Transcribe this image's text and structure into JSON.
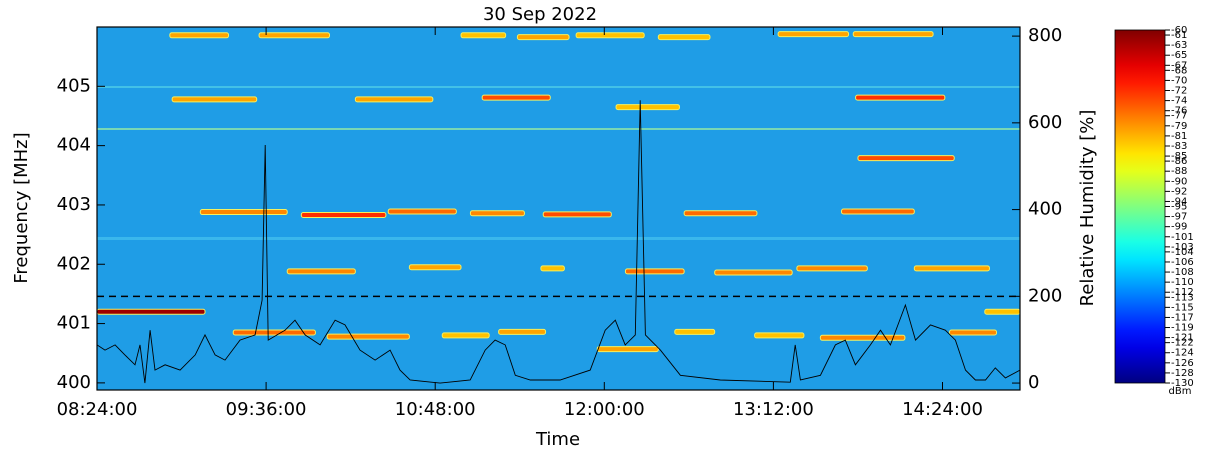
{
  "chart_data": {
    "type": "spectrogram",
    "title": "30 Sep 2022",
    "x_label": "Time",
    "y_label": "Frequency [MHz]",
    "y2_label": "Relative Humidity [%]",
    "colorbar_unit": "dBm",
    "colormap": "jet",
    "xlim": [
      504,
      897
    ],
    "xticks": [
      {
        "value": 504,
        "label": "08:24:00"
      },
      {
        "value": 576,
        "label": "09:36:00"
      },
      {
        "value": 648,
        "label": "10:48:00"
      },
      {
        "value": 720,
        "label": "12:00:00"
      },
      {
        "value": 792,
        "label": "13:12:00"
      },
      {
        "value": 864,
        "label": "14:24:00"
      }
    ],
    "ylim": [
      399.88,
      406.0
    ],
    "yticks": [
      400,
      401,
      402,
      403,
      404,
      405
    ],
    "y2lim": [
      -16,
      821
    ],
    "y2ticks": [
      0,
      200,
      400,
      600,
      800
    ],
    "clim": [
      -130,
      -60
    ],
    "cticks": [
      -60,
      -61,
      -63,
      -65,
      -67,
      -68,
      -70,
      -72,
      -74,
      -76,
      -77,
      -79,
      -81,
      -83,
      -85,
      -86,
      -88,
      -90,
      -92,
      -94,
      -95,
      -97,
      -99,
      -101,
      -103,
      -104,
      -106,
      -108,
      -110,
      -112,
      -113,
      -115,
      -117,
      -119,
      -121,
      -122,
      -124,
      -126,
      -128,
      -130
    ],
    "reference_line_y2": 200,
    "signals": [
      {
        "start": 535,
        "end": 560,
        "frequency": 405.86,
        "level": -80
      },
      {
        "start": 573,
        "end": 603,
        "frequency": 405.86,
        "level": -80
      },
      {
        "start": 659,
        "end": 678,
        "frequency": 405.86,
        "level": -82
      },
      {
        "start": 683,
        "end": 705,
        "frequency": 405.83,
        "level": -80
      },
      {
        "start": 708,
        "end": 737,
        "frequency": 405.86,
        "level": -82
      },
      {
        "start": 743,
        "end": 765,
        "frequency": 405.83,
        "level": -82
      },
      {
        "start": 794,
        "end": 824,
        "frequency": 405.88,
        "level": -80
      },
      {
        "start": 826,
        "end": 860,
        "frequency": 405.88,
        "level": -80
      },
      {
        "start": 536,
        "end": 572,
        "frequency": 404.78,
        "level": -80
      },
      {
        "start": 614,
        "end": 647,
        "frequency": 404.78,
        "level": -80
      },
      {
        "start": 668,
        "end": 697,
        "frequency": 404.81,
        "level": -74
      },
      {
        "start": 725,
        "end": 752,
        "frequency": 404.65,
        "level": -82
      },
      {
        "start": 827,
        "end": 865,
        "frequency": 404.81,
        "level": -72
      },
      {
        "start": 828,
        "end": 869,
        "frequency": 403.79,
        "level": -74
      },
      {
        "start": 548,
        "end": 585,
        "frequency": 402.88,
        "level": -78
      },
      {
        "start": 591,
        "end": 627,
        "frequency": 402.83,
        "level": -72
      },
      {
        "start": 628,
        "end": 657,
        "frequency": 402.89,
        "level": -76
      },
      {
        "start": 663,
        "end": 686,
        "frequency": 402.86,
        "level": -78
      },
      {
        "start": 694,
        "end": 723,
        "frequency": 402.84,
        "level": -74
      },
      {
        "start": 754,
        "end": 785,
        "frequency": 402.86,
        "level": -76
      },
      {
        "start": 821,
        "end": 852,
        "frequency": 402.89,
        "level": -76
      },
      {
        "start": 585,
        "end": 614,
        "frequency": 401.88,
        "level": -78
      },
      {
        "start": 637,
        "end": 659,
        "frequency": 401.95,
        "level": -80
      },
      {
        "start": 693,
        "end": 703,
        "frequency": 401.93,
        "level": -82
      },
      {
        "start": 729,
        "end": 754,
        "frequency": 401.88,
        "level": -76
      },
      {
        "start": 767,
        "end": 800,
        "frequency": 401.86,
        "level": -78
      },
      {
        "start": 802,
        "end": 832,
        "frequency": 401.93,
        "level": -78
      },
      {
        "start": 852,
        "end": 884,
        "frequency": 401.93,
        "level": -80
      },
      {
        "start": 504,
        "end": 550,
        "frequency": 401.2,
        "level": -62
      },
      {
        "start": 882,
        "end": 897,
        "frequency": 401.2,
        "level": -82
      },
      {
        "start": 562,
        "end": 597,
        "frequency": 400.85,
        "level": -76
      },
      {
        "start": 602,
        "end": 637,
        "frequency": 400.78,
        "level": -78
      },
      {
        "start": 651,
        "end": 671,
        "frequency": 400.8,
        "level": -82
      },
      {
        "start": 675,
        "end": 695,
        "frequency": 400.86,
        "level": -80
      },
      {
        "start": 717,
        "end": 743,
        "frequency": 400.57,
        "level": -80
      },
      {
        "start": 750,
        "end": 767,
        "frequency": 400.86,
        "level": -82
      },
      {
        "start": 784,
        "end": 805,
        "frequency": 400.8,
        "level": -82
      },
      {
        "start": 812,
        "end": 848,
        "frequency": 400.76,
        "level": -78
      },
      {
        "start": 867,
        "end": 887,
        "frequency": 400.85,
        "level": -78
      }
    ],
    "humidity": {
      "color": "#000000",
      "axis": "y2",
      "x": [
        504.0,
        507.4,
        511.7,
        515.9,
        520.2,
        522.3,
        524.4,
        526.6,
        528.7,
        533.0,
        539.4,
        545.8,
        550.0,
        554.3,
        558.5,
        564.9,
        571.3,
        574.3,
        575.6,
        576.9,
        584.1,
        588.3,
        592.6,
        599.0,
        605.4,
        609.6,
        616.0,
        622.4,
        628.8,
        633.0,
        637.3,
        650.1,
        662.9,
        669.3,
        673.5,
        677.8,
        682.1,
        688.5,
        701.2,
        714.0,
        720.4,
        724.7,
        728.9,
        733.2,
        735.3,
        737.5,
        743.9,
        752.4,
        769.4,
        799.2,
        801.3,
        803.5,
        812.0,
        818.4,
        822.6,
        826.9,
        833.3,
        837.6,
        841.8,
        848.2,
        852.5,
        858.9,
        865.2,
        869.5,
        873.8,
        878.0,
        882.3,
        886.5,
        890.8,
        897.0
      ],
      "values": [
        88,
        76,
        88,
        65,
        42,
        88,
        0,
        122,
        30,
        42,
        30,
        65,
        111,
        65,
        53,
        99,
        111,
        191,
        549,
        99,
        122,
        145,
        111,
        88,
        145,
        134,
        76,
        53,
        76,
        30,
        7,
        0,
        7,
        76,
        99,
        88,
        18,
        7,
        7,
        30,
        122,
        145,
        88,
        111,
        652,
        111,
        76,
        18,
        7,
        2,
        88,
        7,
        18,
        88,
        99,
        42,
        88,
        122,
        88,
        180,
        99,
        134,
        122,
        99,
        30,
        7,
        7,
        35,
        12,
        30
      ]
    }
  }
}
